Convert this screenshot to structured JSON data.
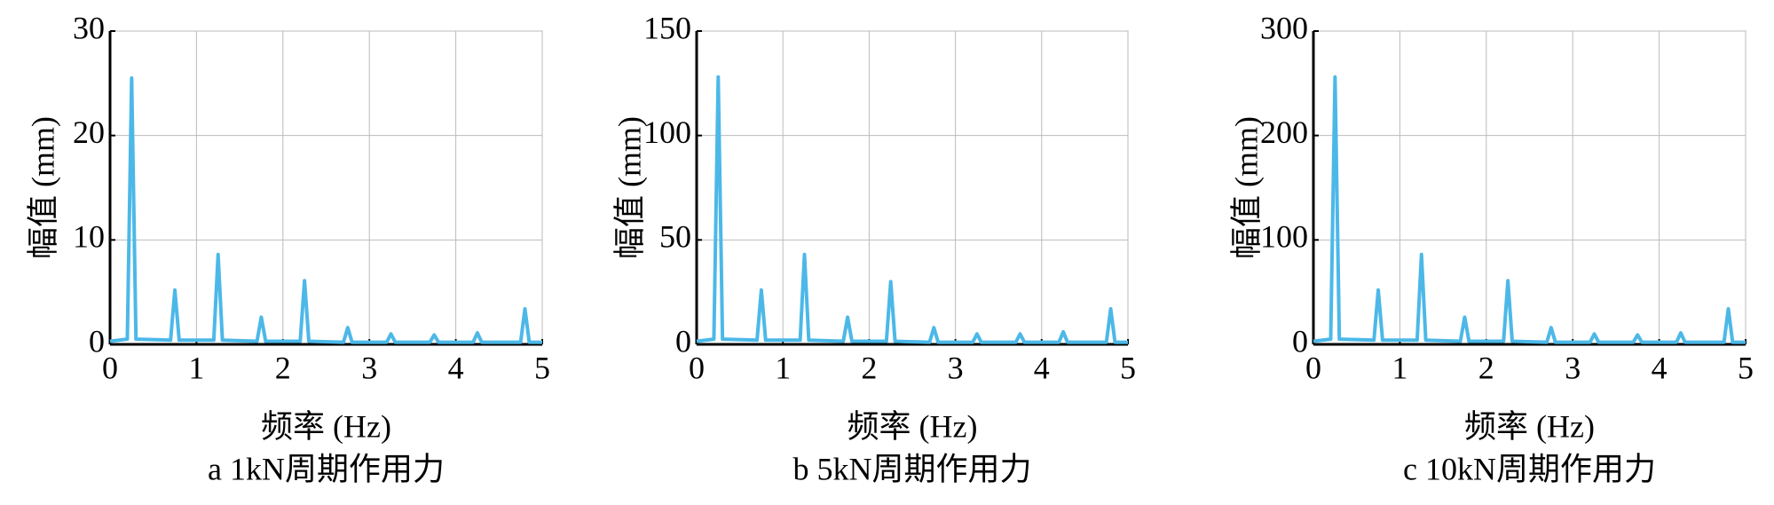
{
  "chart_data": [
    {
      "type": "line",
      "y_label": "幅值 (mm)",
      "x_label": "频率 (Hz)",
      "caption": "a 1kN周期作用力",
      "color": "#4cb8e8",
      "xlim": [
        0,
        5
      ],
      "xticks": [
        0,
        1,
        2,
        3,
        4,
        5
      ],
      "ylim": [
        0,
        30
      ],
      "yticks": [
        0,
        10,
        20,
        30
      ],
      "grid": true,
      "x": [
        0,
        0.2,
        0.25,
        0.3,
        0.7,
        0.75,
        0.8,
        1.2,
        1.25,
        1.3,
        1.7,
        1.75,
        1.8,
        2.2,
        2.25,
        2.3,
        2.7,
        2.75,
        2.8,
        3.2,
        3.25,
        3.3,
        3.7,
        3.75,
        3.8,
        4.2,
        4.25,
        4.3,
        4.75,
        4.8,
        4.85,
        5
      ],
      "values": [
        0.3,
        0.5,
        25.5,
        0.5,
        0.4,
        5.2,
        0.4,
        0.4,
        8.6,
        0.4,
        0.3,
        2.6,
        0.3,
        0.3,
        6.1,
        0.3,
        0.2,
        1.6,
        0.2,
        0.2,
        1.0,
        0.2,
        0.2,
        0.9,
        0.2,
        0.2,
        1.1,
        0.2,
        0.2,
        3.4,
        0.2,
        0.2
      ]
    },
    {
      "type": "line",
      "y_label": "幅值 (mm)",
      "x_label": "频率 (Hz)",
      "caption": "b 5kN周期作用力",
      "color": "#4cb8e8",
      "xlim": [
        0,
        5
      ],
      "xticks": [
        0,
        1,
        2,
        3,
        4,
        5
      ],
      "ylim": [
        0,
        150
      ],
      "yticks": [
        0,
        50,
        100,
        150
      ],
      "grid": true,
      "x": [
        0,
        0.2,
        0.25,
        0.3,
        0.7,
        0.75,
        0.8,
        1.2,
        1.25,
        1.3,
        1.7,
        1.75,
        1.8,
        2.2,
        2.25,
        2.3,
        2.7,
        2.75,
        2.8,
        3.2,
        3.25,
        3.3,
        3.7,
        3.75,
        3.8,
        4.2,
        4.25,
        4.3,
        4.75,
        4.8,
        4.85,
        5
      ],
      "values": [
        1.5,
        2.5,
        128,
        2.5,
        2,
        26,
        2,
        2,
        43,
        2,
        1.5,
        13,
        1.5,
        1.5,
        30,
        1.5,
        1,
        8,
        1,
        1,
        5,
        1,
        1,
        5,
        1,
        1,
        6,
        1,
        1,
        17,
        1,
        1
      ]
    },
    {
      "type": "line",
      "y_label": "幅值 (mm)",
      "x_label": "频率 (Hz)",
      "caption": "c 10kN周期作用力",
      "color": "#4cb8e8",
      "xlim": [
        0,
        5
      ],
      "xticks": [
        0,
        1,
        2,
        3,
        4,
        5
      ],
      "ylim": [
        0,
        300
      ],
      "yticks": [
        0,
        100,
        200,
        300
      ],
      "grid": true,
      "x": [
        0,
        0.2,
        0.25,
        0.3,
        0.7,
        0.75,
        0.8,
        1.2,
        1.25,
        1.3,
        1.7,
        1.75,
        1.8,
        2.2,
        2.25,
        2.3,
        2.7,
        2.75,
        2.8,
        3.2,
        3.25,
        3.3,
        3.7,
        3.75,
        3.8,
        4.2,
        4.25,
        4.3,
        4.75,
        4.8,
        4.85,
        5
      ],
      "values": [
        3,
        5,
        256,
        5,
        4,
        52,
        4,
        4,
        86,
        4,
        3,
        26,
        3,
        3,
        61,
        3,
        2,
        16,
        2,
        2,
        10,
        2,
        2,
        9,
        2,
        2,
        11,
        2,
        2,
        34,
        2,
        2
      ]
    }
  ]
}
